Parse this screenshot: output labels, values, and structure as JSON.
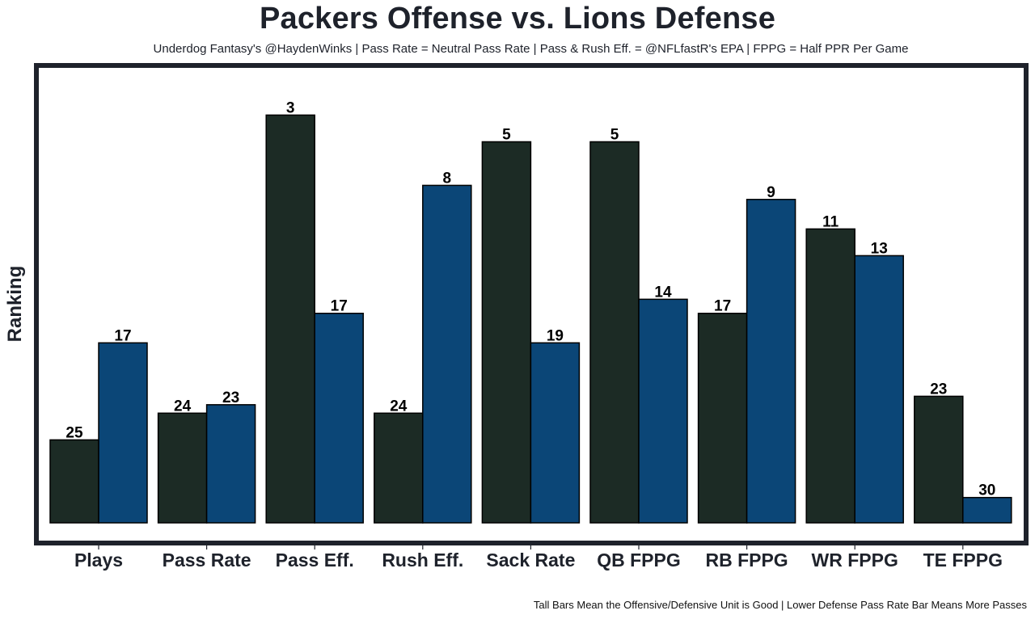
{
  "chart_data": {
    "type": "bar",
    "title": "Packers Offense vs. Lions Defense",
    "subtitle": "Underdog Fantasy's @HaydenWinks | Pass Rate = Neutral Pass Rate | Pass & Rush Eff. = @NFLfastR's EPA | FPPG = Half PPR Per Game",
    "caption": "Tall Bars Mean the Offensive/Defensive Unit is Good | Lower Defense Pass Rate Bar Means More Passes",
    "xlabel": "",
    "ylabel": "Ranking",
    "grid": false,
    "legend": "none",
    "categories": [
      "Plays",
      "Pass Rate",
      "Pass Eff.",
      "Rush Eff.",
      "Sack Rate",
      "QB FPPG",
      "RB FPPG",
      "WR FPPG",
      "TE FPPG"
    ],
    "ylim": [
      0,
      32
    ],
    "series": [
      {
        "name": "Packers Offense",
        "color": "#1c2b25",
        "rank_labels": [
          25,
          24,
          3,
          24,
          5,
          5,
          17,
          11,
          23
        ],
        "values": [
          5.9,
          7.8,
          29.0,
          7.8,
          27.1,
          27.1,
          14.9,
          20.9,
          9.0
        ]
      },
      {
        "name": "Lions Defense",
        "color": "#0b4677",
        "rank_labels": [
          17,
          23,
          17,
          8,
          19,
          14,
          9,
          13,
          30
        ],
        "values": [
          12.8,
          8.4,
          14.9,
          24.0,
          12.8,
          15.9,
          23.0,
          19.0,
          1.8
        ]
      }
    ]
  },
  "colors": {
    "frame": "#1e222b",
    "bar_outline": "#000000"
  }
}
